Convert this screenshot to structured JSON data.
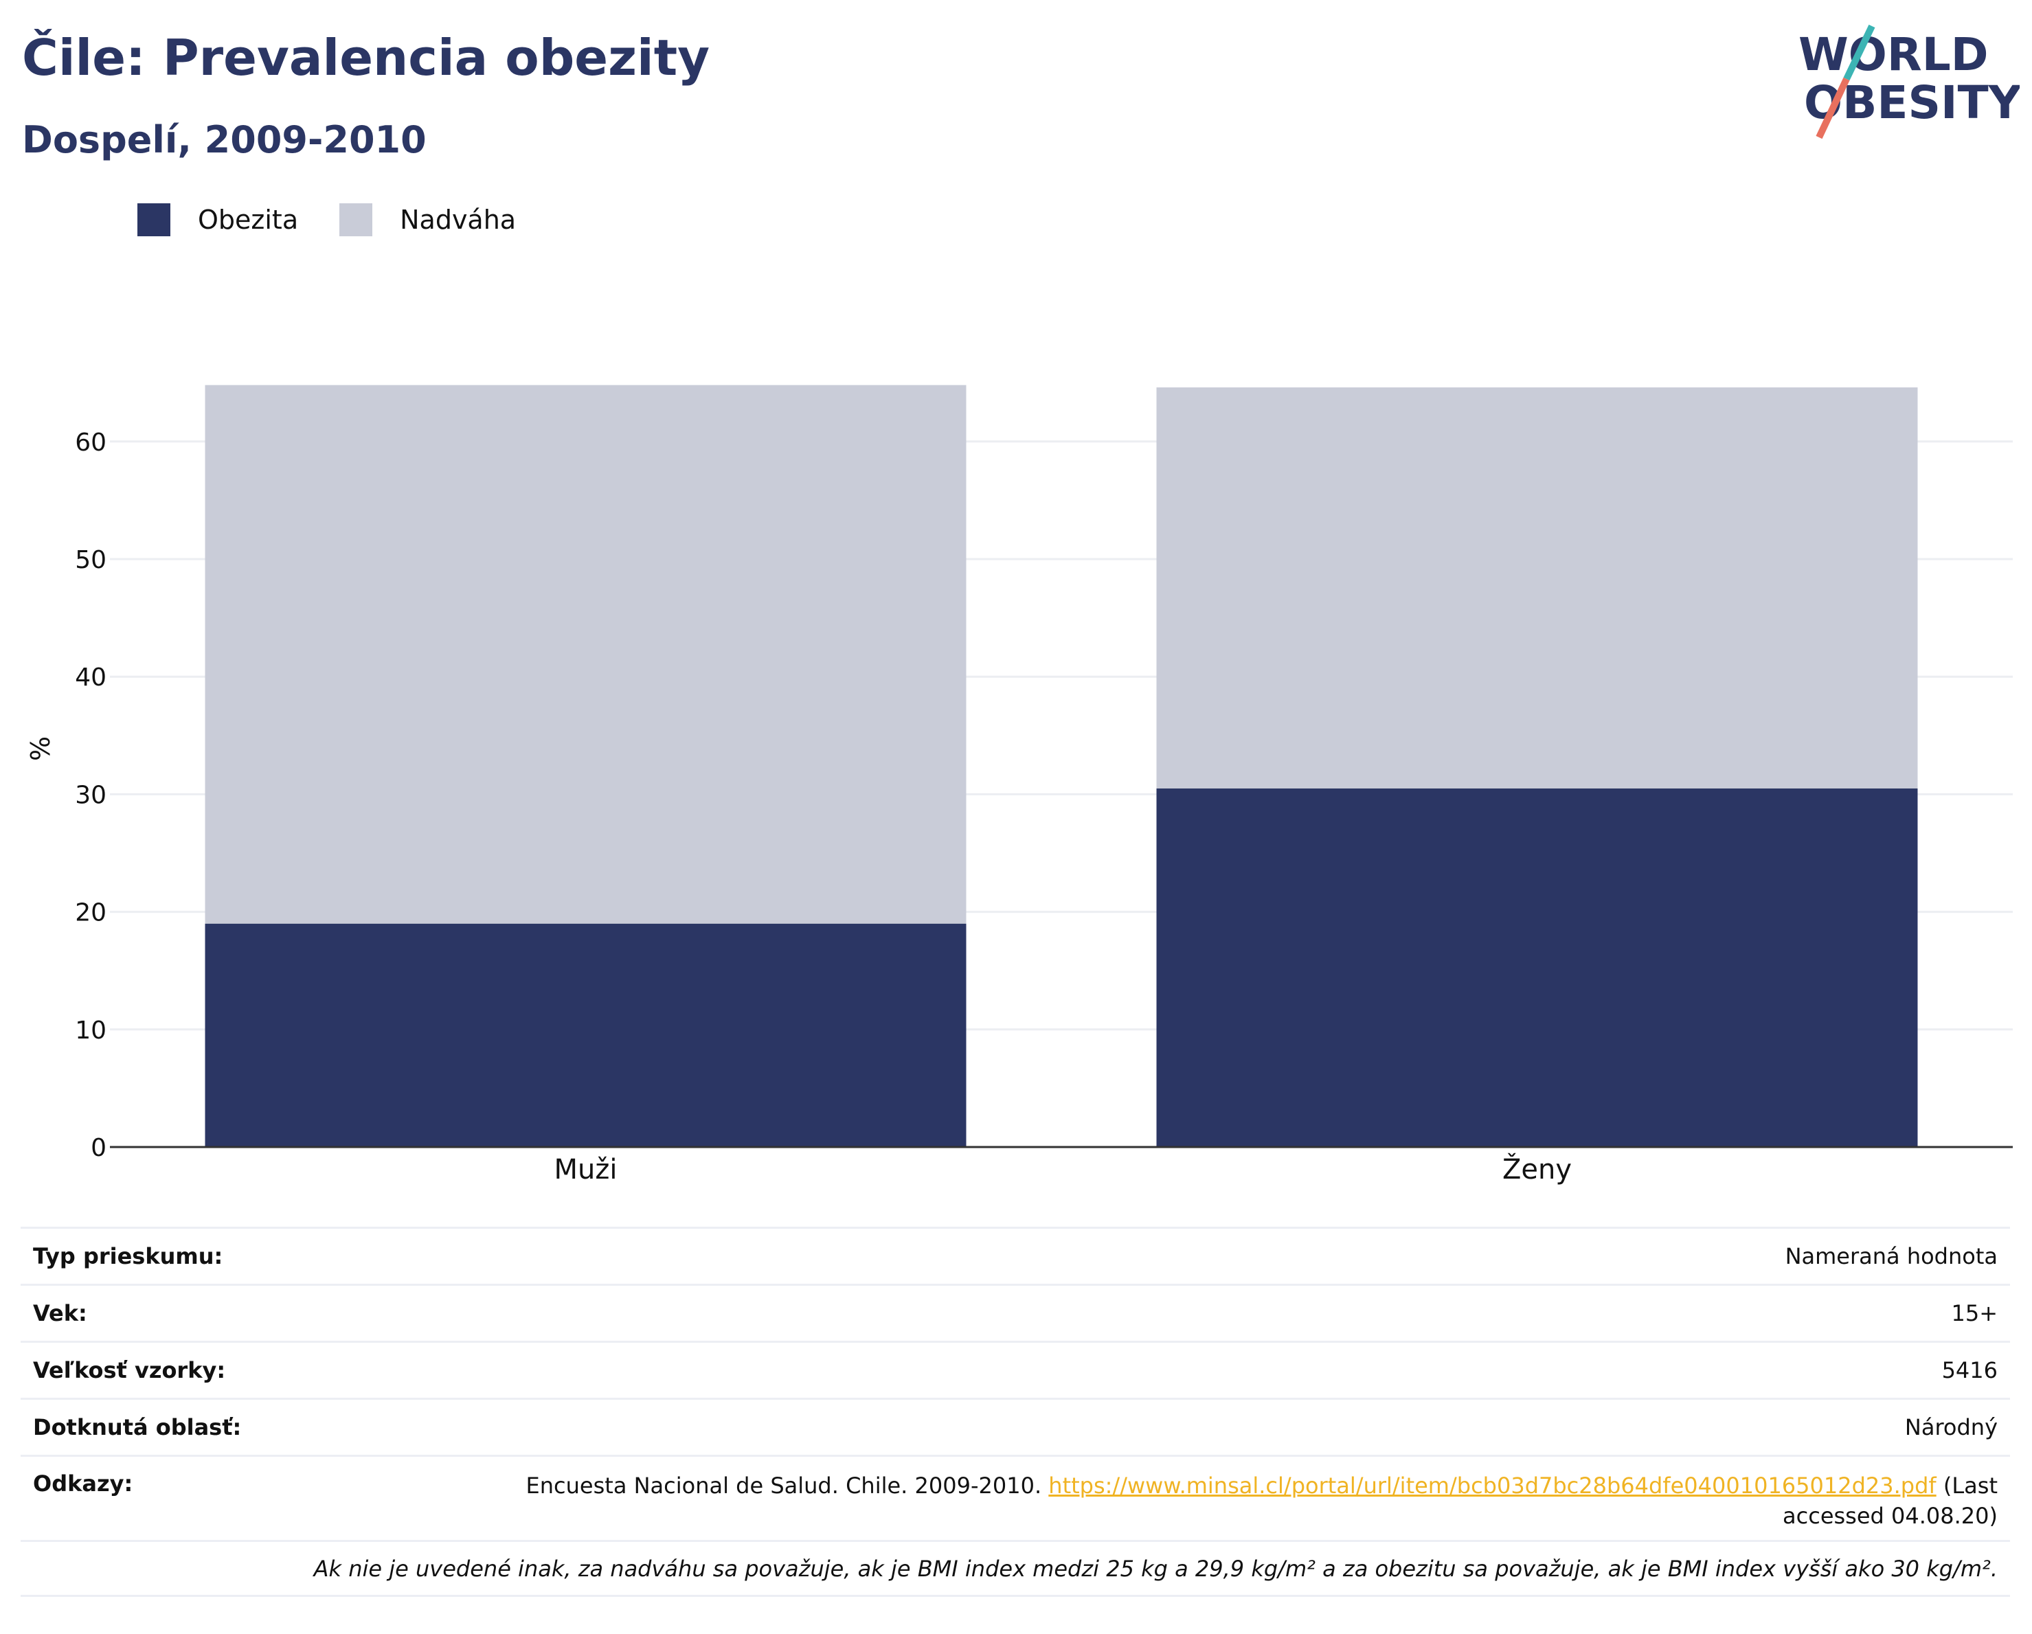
{
  "header": {
    "title": "Čile: Prevalencia obezity",
    "subtitle": "Dospelí, 2009-2010",
    "logo_line1": "WORLD",
    "logo_line2": "OBESITY"
  },
  "legend": [
    {
      "label": "Obezita",
      "color": "#2b3664"
    },
    {
      "label": "Nadváha",
      "color": "#c9ccd8"
    }
  ],
  "chart_data": {
    "type": "bar",
    "stacked": true,
    "categories": [
      "Muži",
      "Ženy"
    ],
    "series": [
      {
        "name": "Obezita",
        "values": [
          19.0,
          30.5
        ],
        "color": "#2b3664"
      },
      {
        "name": "Nadváha",
        "values": [
          45.8,
          34.1
        ],
        "color": "#c9ccd8"
      }
    ],
    "ylabel": "%",
    "ylim": [
      0,
      65
    ],
    "yticks": [
      0,
      10,
      20,
      30,
      40,
      50,
      60
    ],
    "grid": true,
    "legend_position": "top-left"
  },
  "info": {
    "survey_type": {
      "label": "Typ prieskumu:",
      "value": "Nameraná hodnota"
    },
    "age": {
      "label": "Vek:",
      "value": "15+"
    },
    "sample_size": {
      "label": "Veľkosť vzorky:",
      "value": "5416"
    },
    "area": {
      "label": "Dotknutá oblasť:",
      "value": "Národný"
    },
    "references": {
      "label": "Odkazy:",
      "text_before": "Encuesta Nacional de Salud. Chile. 2009-2010. ",
      "link": "https://www.minsal.cl/portal/url/item/bcb03d7bc28b64dfe040010165012d23.pdf",
      "text_after": " (Last accessed 04.08.20)"
    },
    "note": "Ak nie je uvedené inak, za nadváhu sa považuje, ak je BMI index medzi 25 kg a 29,9 kg/m² a za obezitu sa považuje, ak je BMI index vyšší ako 30 kg/m²."
  }
}
